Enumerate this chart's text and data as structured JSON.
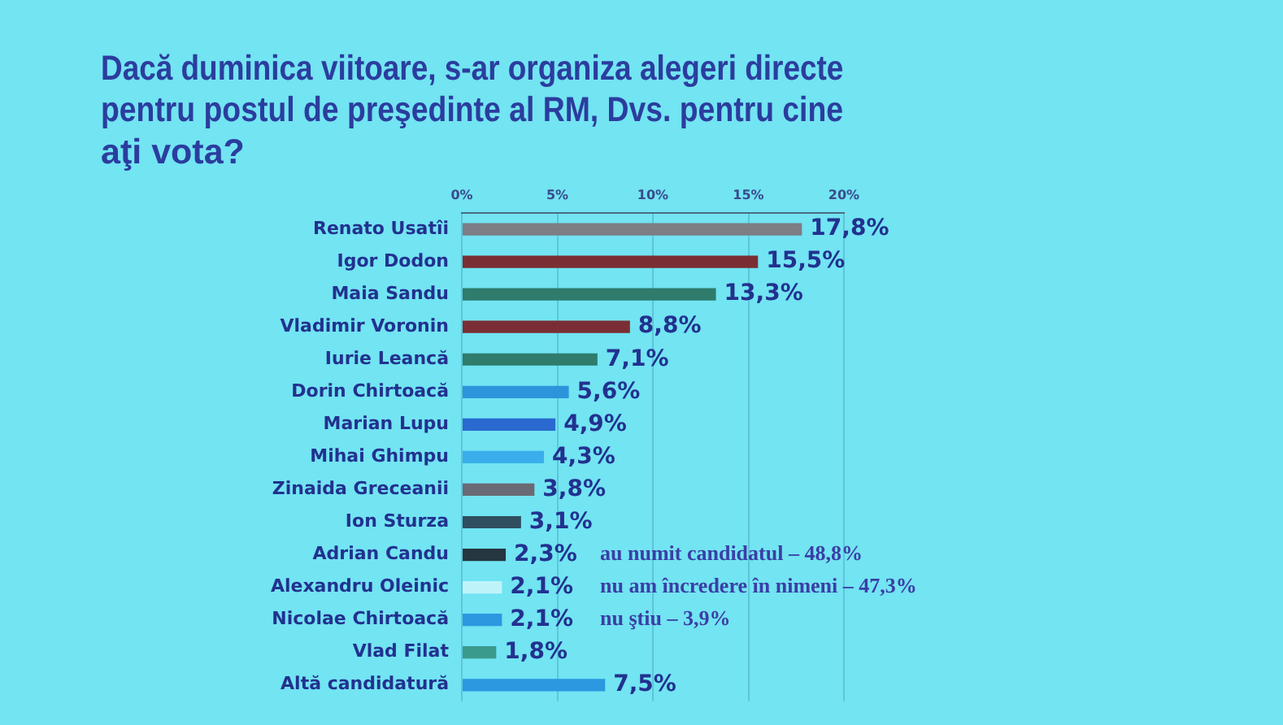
{
  "chart_data": {
    "type": "bar",
    "orientation": "horizontal",
    "title": "Dacă duminica viitoare, s-ar organiza alegeri directe pentru postul de preşedinte al RM, Dvs. pentru cine aţi vota?",
    "categories": [
      "Renato Usatîi",
      "Igor Dodon",
      "Maia Sandu",
      "Vladimir Voronin",
      "Iurie Leancă",
      "Dorin Chirtoacă",
      "Marian Lupu",
      "Mihai Ghimpu",
      "Zinaida Greceanii",
      "Ion Sturza",
      "Adrian Candu",
      "Alexandru Oleinic",
      "Nicolae Chirtoacă",
      "Vlad Filat",
      "Altă candidatură"
    ],
    "values": [
      17.8,
      15.5,
      13.3,
      8.8,
      7.1,
      5.6,
      4.9,
      4.3,
      3.8,
      3.1,
      2.3,
      2.1,
      2.1,
      1.8,
      7.5
    ],
    "colors": [
      "#7d7d85",
      "#7a2e33",
      "#2f7c6c",
      "#7a2e33",
      "#2f7c6c",
      "#2b95dc",
      "#2a6ad0",
      "#3aaeea",
      "#6a6a74",
      "#2f4e60",
      "#253640",
      "#bff3fa",
      "#2b98e0",
      "#3a9a8c",
      "#2b98e0"
    ],
    "value_labels": [
      "17,8%",
      "15,5%",
      "13,3%",
      "8,8%",
      "7,1%",
      "5,6%",
      "4,9%",
      "4,3%",
      "3,8%",
      "3,1%",
      "2,3%",
      "2,1%",
      "2,1%",
      "1,8%",
      "7,5%"
    ],
    "xlim": [
      0,
      20
    ],
    "xticks": [
      {
        "value": 0,
        "label": "0%"
      },
      {
        "value": 5,
        "label": "5%"
      },
      {
        "value": 10,
        "label": "10%"
      },
      {
        "value": 15,
        "label": "15%"
      },
      {
        "value": 20,
        "label": "20%"
      }
    ],
    "grid": "x",
    "annotations": [
      "au numit candidatul – 48,8%",
      "nu am încredere în nimeni – 47,3%",
      "nu ştiu – 3,9%"
    ]
  }
}
